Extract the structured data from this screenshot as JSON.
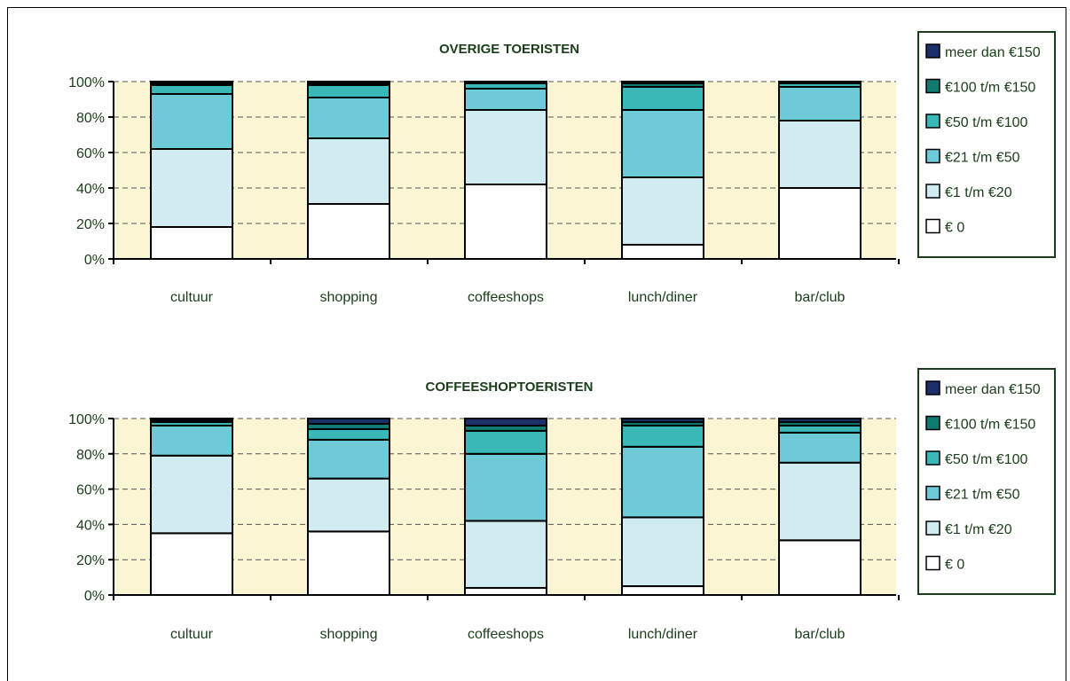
{
  "chart_data": [
    {
      "type": "bar",
      "stacked": true,
      "normalized": true,
      "title": "OVERIGE TOERISTEN",
      "categories": [
        "cultuur",
        "shopping",
        "coffeeshops",
        "lunch/diner",
        "bar/club"
      ],
      "yticks": [
        "0%",
        "20%",
        "40%",
        "60%",
        "80%",
        "100%"
      ],
      "ylim": [
        0,
        100
      ],
      "grid": true,
      "legend_position": "right",
      "series": [
        {
          "name": "€ 0",
          "color": "#ffffff",
          "values": [
            18,
            31,
            42,
            8,
            40
          ]
        },
        {
          "name": "€1 t/m €20",
          "color": "#d0ecf0",
          "values": [
            44,
            37,
            42,
            38,
            38
          ]
        },
        {
          "name": "€21 t/m €50",
          "color": "#6fcad8",
          "values": [
            31,
            23,
            12,
            38,
            19
          ]
        },
        {
          "name": "€50 t/m €100",
          "color": "#3ab8b8",
          "values": [
            5,
            7,
            3,
            13,
            2
          ]
        },
        {
          "name": "€100 t/m €150",
          "color": "#0e7a72",
          "values": [
            1,
            1,
            0.5,
            2,
            0.5
          ]
        },
        {
          "name": "meer dan €150",
          "color": "#1d2f6b",
          "values": [
            1,
            1,
            0.5,
            1,
            0.5
          ]
        }
      ]
    },
    {
      "type": "bar",
      "stacked": true,
      "normalized": true,
      "title": "COFFEESHOPTOERISTEN",
      "categories": [
        "cultuur",
        "shopping",
        "coffeeshops",
        "lunch/diner",
        "bar/club"
      ],
      "yticks": [
        "0%",
        "20%",
        "40%",
        "60%",
        "80%",
        "100%"
      ],
      "ylim": [
        0,
        100
      ],
      "grid": true,
      "legend_position": "right",
      "series": [
        {
          "name": "€ 0",
          "color": "#ffffff",
          "values": [
            35,
            36,
            4,
            5,
            31
          ]
        },
        {
          "name": "€1 t/m €20",
          "color": "#d0ecf0",
          "values": [
            44,
            30,
            38,
            39,
            44
          ]
        },
        {
          "name": "€21 t/m €50",
          "color": "#6fcad8",
          "values": [
            17,
            22,
            38,
            40,
            17
          ]
        },
        {
          "name": "€50 t/m €100",
          "color": "#3ab8b8",
          "values": [
            2,
            6,
            13,
            12,
            4
          ]
        },
        {
          "name": "€100 t/m €150",
          "color": "#0e7a72",
          "values": [
            1,
            3,
            3,
            2,
            2
          ]
        },
        {
          "name": "meer dan €150",
          "color": "#1d2f6b",
          "values": [
            1,
            3,
            4,
            2,
            2
          ]
        }
      ]
    }
  ]
}
